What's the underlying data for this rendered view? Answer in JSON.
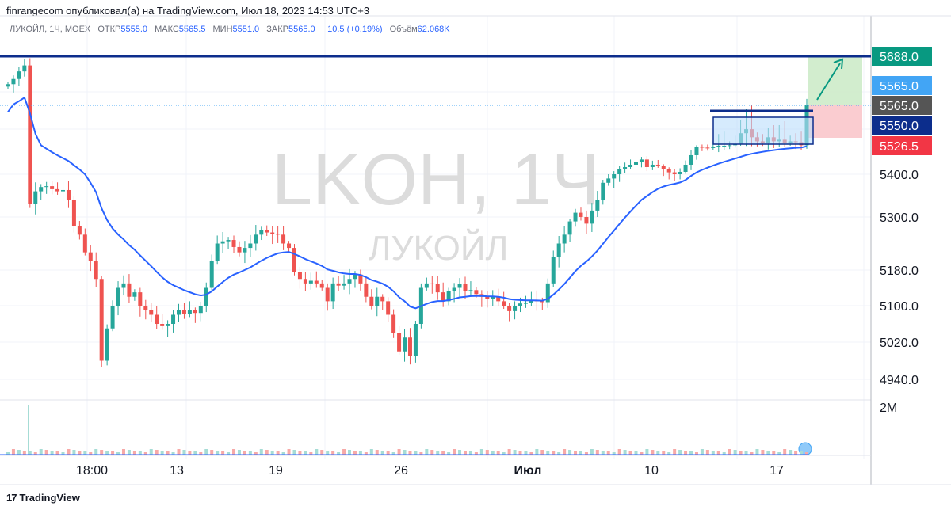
{
  "header": {
    "publisher_line": "finrangecom опубликовал(а) на TradingView.com, Июл 18, 2023 14:53 UTC+3"
  },
  "legend": {
    "symbol": "ЛУКОЙЛ, 1Ч, MOEX",
    "open_label": "ОТКР",
    "open_value": "5555.0",
    "high_label": "МАКС",
    "high_value": "5565.5",
    "low_label": "МИН",
    "low_value": "5551.0",
    "close_label": "ЗАКР",
    "close_value": "5565.0",
    "change": "+10.5 (+0.19%)",
    "volume_label": "Объём",
    "volume_value": "62.068K"
  },
  "watermark": {
    "ticker": "LKOH, 1Ч",
    "name": "ЛУКОЙЛ"
  },
  "footer": {
    "logo_glyph": "17",
    "brand": "TradingView"
  },
  "colors": {
    "up": "#26a69a",
    "down": "#ef5350",
    "ma": "#2962ff",
    "navy": "#0c2d8c",
    "green_badge": "#089981",
    "blue_badge": "#42a5f5",
    "gray_badge": "#555555",
    "red_badge": "#f23645",
    "target_zone": "#cdebc9",
    "stop_zone": "#f9c6cb"
  },
  "chart_data": {
    "type": "candlestick",
    "y_tick_labels": [
      "5400.0",
      "5300.0",
      "5180.0",
      "5100.0",
      "5020.0",
      "4940.0"
    ],
    "y_ticks": [
      5400,
      5300,
      5180,
      5100,
      5020,
      4940
    ],
    "price_badges": [
      {
        "label": "5688.0",
        "value": 5688.0,
        "role": "resistance level"
      },
      {
        "label": "5565.0",
        "value": 5565.0,
        "role": "last price"
      },
      {
        "label": "5565.0",
        "value": 5565.0,
        "role": "dotted last price"
      },
      {
        "label": "5550.0",
        "value": 5550.0,
        "role": "moving average"
      },
      {
        "label": "5526.5",
        "value": 5526.5,
        "role": "stop"
      }
    ],
    "x_tick_labels": [
      "18:00",
      "13",
      "19",
      "26",
      "Июл",
      "10",
      "17"
    ],
    "volume_label": "2M",
    "close_series": [
      5618,
      5631,
      5650,
      5665,
      5330,
      5360,
      5370,
      5372,
      5365,
      5360,
      5363,
      5340,
      5280,
      5260,
      5220,
      5200,
      5160,
      4980,
      5050,
      5100,
      5140,
      5150,
      5120,
      5130,
      5100,
      5090,
      5080,
      5060,
      5055,
      5060,
      5080,
      5090,
      5082,
      5090,
      5084,
      5100,
      5140,
      5200,
      5240,
      5245,
      5248,
      5232,
      5220,
      5230,
      5240,
      5260,
      5270,
      5265,
      5262,
      5260,
      5240,
      5230,
      5175,
      5160,
      5150,
      5156,
      5150,
      5140,
      5110,
      5150,
      5145,
      5150,
      5160,
      5170,
      5150,
      5120,
      5100,
      5120,
      5110,
      5080,
      5040,
      5000,
      5030,
      4990,
      5060,
      5140,
      5150,
      5148,
      5130,
      5110,
      5132,
      5140,
      5148,
      5132,
      5135,
      5126,
      5120,
      5115,
      5120,
      5110,
      5100,
      5088,
      5100,
      5105,
      5106,
      5112,
      5110,
      5108,
      5150,
      5210,
      5240,
      5260,
      5290,
      5310,
      5300,
      5285,
      5315,
      5340,
      5380,
      5390,
      5400,
      5420,
      5430,
      5440,
      5450,
      5462,
      5430,
      5440,
      5436,
      5420,
      5408,
      5400,
      5410,
      5440,
      5480,
      5515,
      5512,
      5510,
      5515,
      5520,
      5520,
      5522,
      5526,
      5540,
      5545,
      5535,
      5530,
      5528,
      5535,
      5530,
      5532,
      5528,
      5530,
      5529,
      5522,
      5565
    ],
    "ma_path_note": "blue moving average follows price from about 5560 down to 5100 and back up to 5550",
    "annotations": [
      {
        "type": "horizontal_line",
        "value": 5688.0,
        "label": "5688.0"
      },
      {
        "type": "box",
        "from_value": 5520,
        "to_value": 5560,
        "note": "consolidation range"
      },
      {
        "type": "arrow",
        "direction": "up",
        "target": 5688.0
      }
    ]
  }
}
